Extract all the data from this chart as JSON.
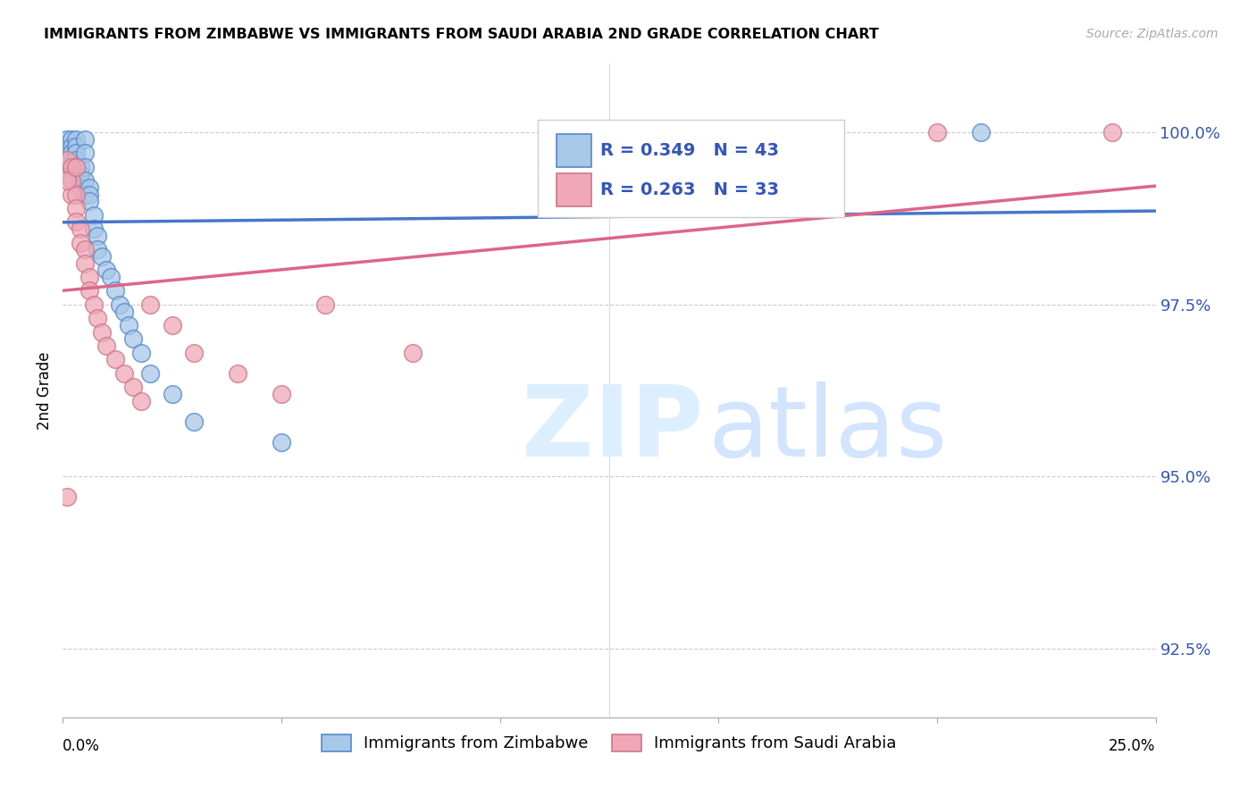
{
  "title": "IMMIGRANTS FROM ZIMBABWE VS IMMIGRANTS FROM SAUDI ARABIA 2ND GRADE CORRELATION CHART",
  "source": "Source: ZipAtlas.com",
  "ylabel": "2nd Grade",
  "y_ticks": [
    92.5,
    95.0,
    97.5,
    100.0
  ],
  "y_tick_labels": [
    "92.5%",
    "95.0%",
    "97.5%",
    "100.0%"
  ],
  "x_min": 0.0,
  "x_max": 0.25,
  "y_min": 91.5,
  "y_max": 101.0,
  "r_zimbabwe": 0.349,
  "n_zimbabwe": 43,
  "r_saudi": 0.263,
  "n_saudi": 33,
  "color_zimbabwe_fill": "#A8C8E8",
  "color_zimbabwe_edge": "#5588CC",
  "color_saudi_fill": "#F0A8B8",
  "color_saudi_edge": "#CC7788",
  "color_zimbabwe_line": "#4477CC",
  "color_saudi_line": "#DD6688",
  "legend_zimbabwe": "Immigrants from Zimbabwe",
  "legend_saudi": "Immigrants from Saudi Arabia",
  "zim_x": [
    0.001,
    0.001,
    0.001,
    0.002,
    0.002,
    0.002,
    0.002,
    0.003,
    0.003,
    0.003,
    0.003,
    0.003,
    0.004,
    0.004,
    0.004,
    0.004,
    0.005,
    0.005,
    0.005,
    0.005,
    0.005,
    0.006,
    0.006,
    0.006,
    0.007,
    0.007,
    0.008,
    0.008,
    0.009,
    0.01,
    0.011,
    0.012,
    0.013,
    0.014,
    0.015,
    0.016,
    0.018,
    0.02,
    0.025,
    0.03,
    0.05,
    0.17,
    0.21
  ],
  "zim_y": [
    99.9,
    99.6,
    99.4,
    99.9,
    99.8,
    99.7,
    99.5,
    99.9,
    99.8,
    99.7,
    99.6,
    99.5,
    99.5,
    99.4,
    99.3,
    99.2,
    99.9,
    99.7,
    99.5,
    99.3,
    99.1,
    99.2,
    99.1,
    99.0,
    98.8,
    98.6,
    98.5,
    98.3,
    98.2,
    98.0,
    97.9,
    97.7,
    97.5,
    97.4,
    97.2,
    97.0,
    96.8,
    96.5,
    96.2,
    95.8,
    95.5,
    100.0,
    100.0
  ],
  "sau_x": [
    0.001,
    0.001,
    0.002,
    0.002,
    0.002,
    0.003,
    0.003,
    0.003,
    0.004,
    0.004,
    0.005,
    0.005,
    0.006,
    0.006,
    0.007,
    0.008,
    0.009,
    0.01,
    0.012,
    0.014,
    0.016,
    0.018,
    0.02,
    0.025,
    0.03,
    0.04,
    0.05,
    0.06,
    0.08,
    0.2,
    0.24,
    0.001,
    0.003
  ],
  "sau_y": [
    99.6,
    94.7,
    99.5,
    99.3,
    99.1,
    99.1,
    98.9,
    98.7,
    98.6,
    98.4,
    98.3,
    98.1,
    97.9,
    97.7,
    97.5,
    97.3,
    97.1,
    96.9,
    96.7,
    96.5,
    96.3,
    96.1,
    97.5,
    97.2,
    96.8,
    96.5,
    96.2,
    97.5,
    96.8,
    100.0,
    100.0,
    99.3,
    99.5
  ]
}
